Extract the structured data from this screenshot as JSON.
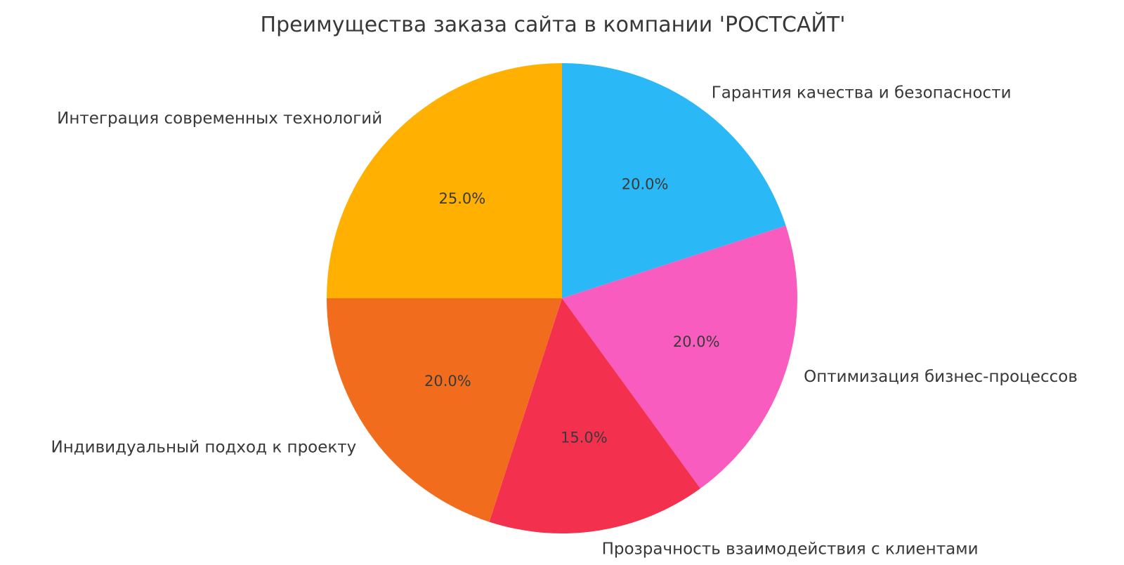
{
  "page": {
    "background_color": "#ffffff"
  },
  "chart_data": {
    "type": "pie",
    "title": "Преимущества заказа сайта в компании 'РОСТСАЙТ'",
    "labels": [
      "Гарантия качества и безопасности",
      "Оптимизация бизнес-процессов",
      "Прозрачность взаимодействия с клиентами",
      "Индивидуальный подход к проекту",
      "Интеграция современных технологий"
    ],
    "values": [
      20.0,
      20.0,
      15.0,
      20.0,
      25.0
    ],
    "pct_labels": [
      "20.0%",
      "20.0%",
      "15.0%",
      "20.0%",
      "25.0%"
    ],
    "colors": [
      "#2AB8F7",
      "#F85CBE",
      "#F4304F",
      "#F26C1E",
      "#FFB000"
    ],
    "start_angle_deg": 90,
    "direction": "clockwise",
    "legend": "none",
    "grid": "off",
    "text_color": "#383838"
  }
}
